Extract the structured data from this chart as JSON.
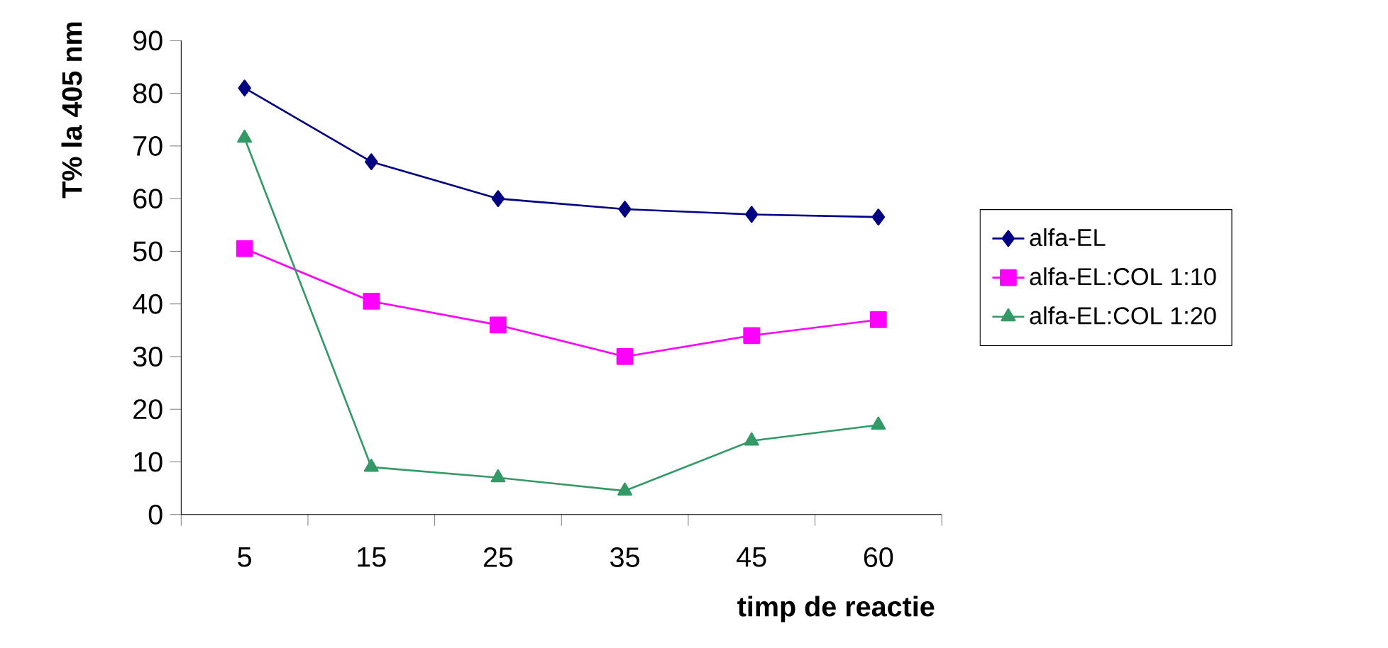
{
  "chart_data": {
    "type": "line",
    "xlabel": "timp de reactie",
    "ylabel": "T% la 405 nm",
    "categories": [
      "5",
      "15",
      "25",
      "35",
      "45",
      "60"
    ],
    "series": [
      {
        "name": "alfa-EL",
        "color": "#000080",
        "marker": "diamond",
        "values": [
          81,
          67,
          60,
          58,
          57,
          56.5
        ]
      },
      {
        "name": "alfa-EL:COL 1:10",
        "color": "#ff00ff",
        "marker": "square",
        "values": [
          50.5,
          40.5,
          36,
          30,
          34,
          37
        ]
      },
      {
        "name": "alfa-EL:COL 1:20",
        "color": "#339966",
        "marker": "triangle",
        "values": [
          71.5,
          9,
          7,
          4.5,
          14,
          17
        ]
      }
    ],
    "ylim": [
      0,
      90
    ],
    "yticks": [
      0,
      10,
      20,
      30,
      40,
      50,
      60,
      70,
      80,
      90
    ],
    "grid": false,
    "legend": "right",
    "line_style": "solid"
  }
}
